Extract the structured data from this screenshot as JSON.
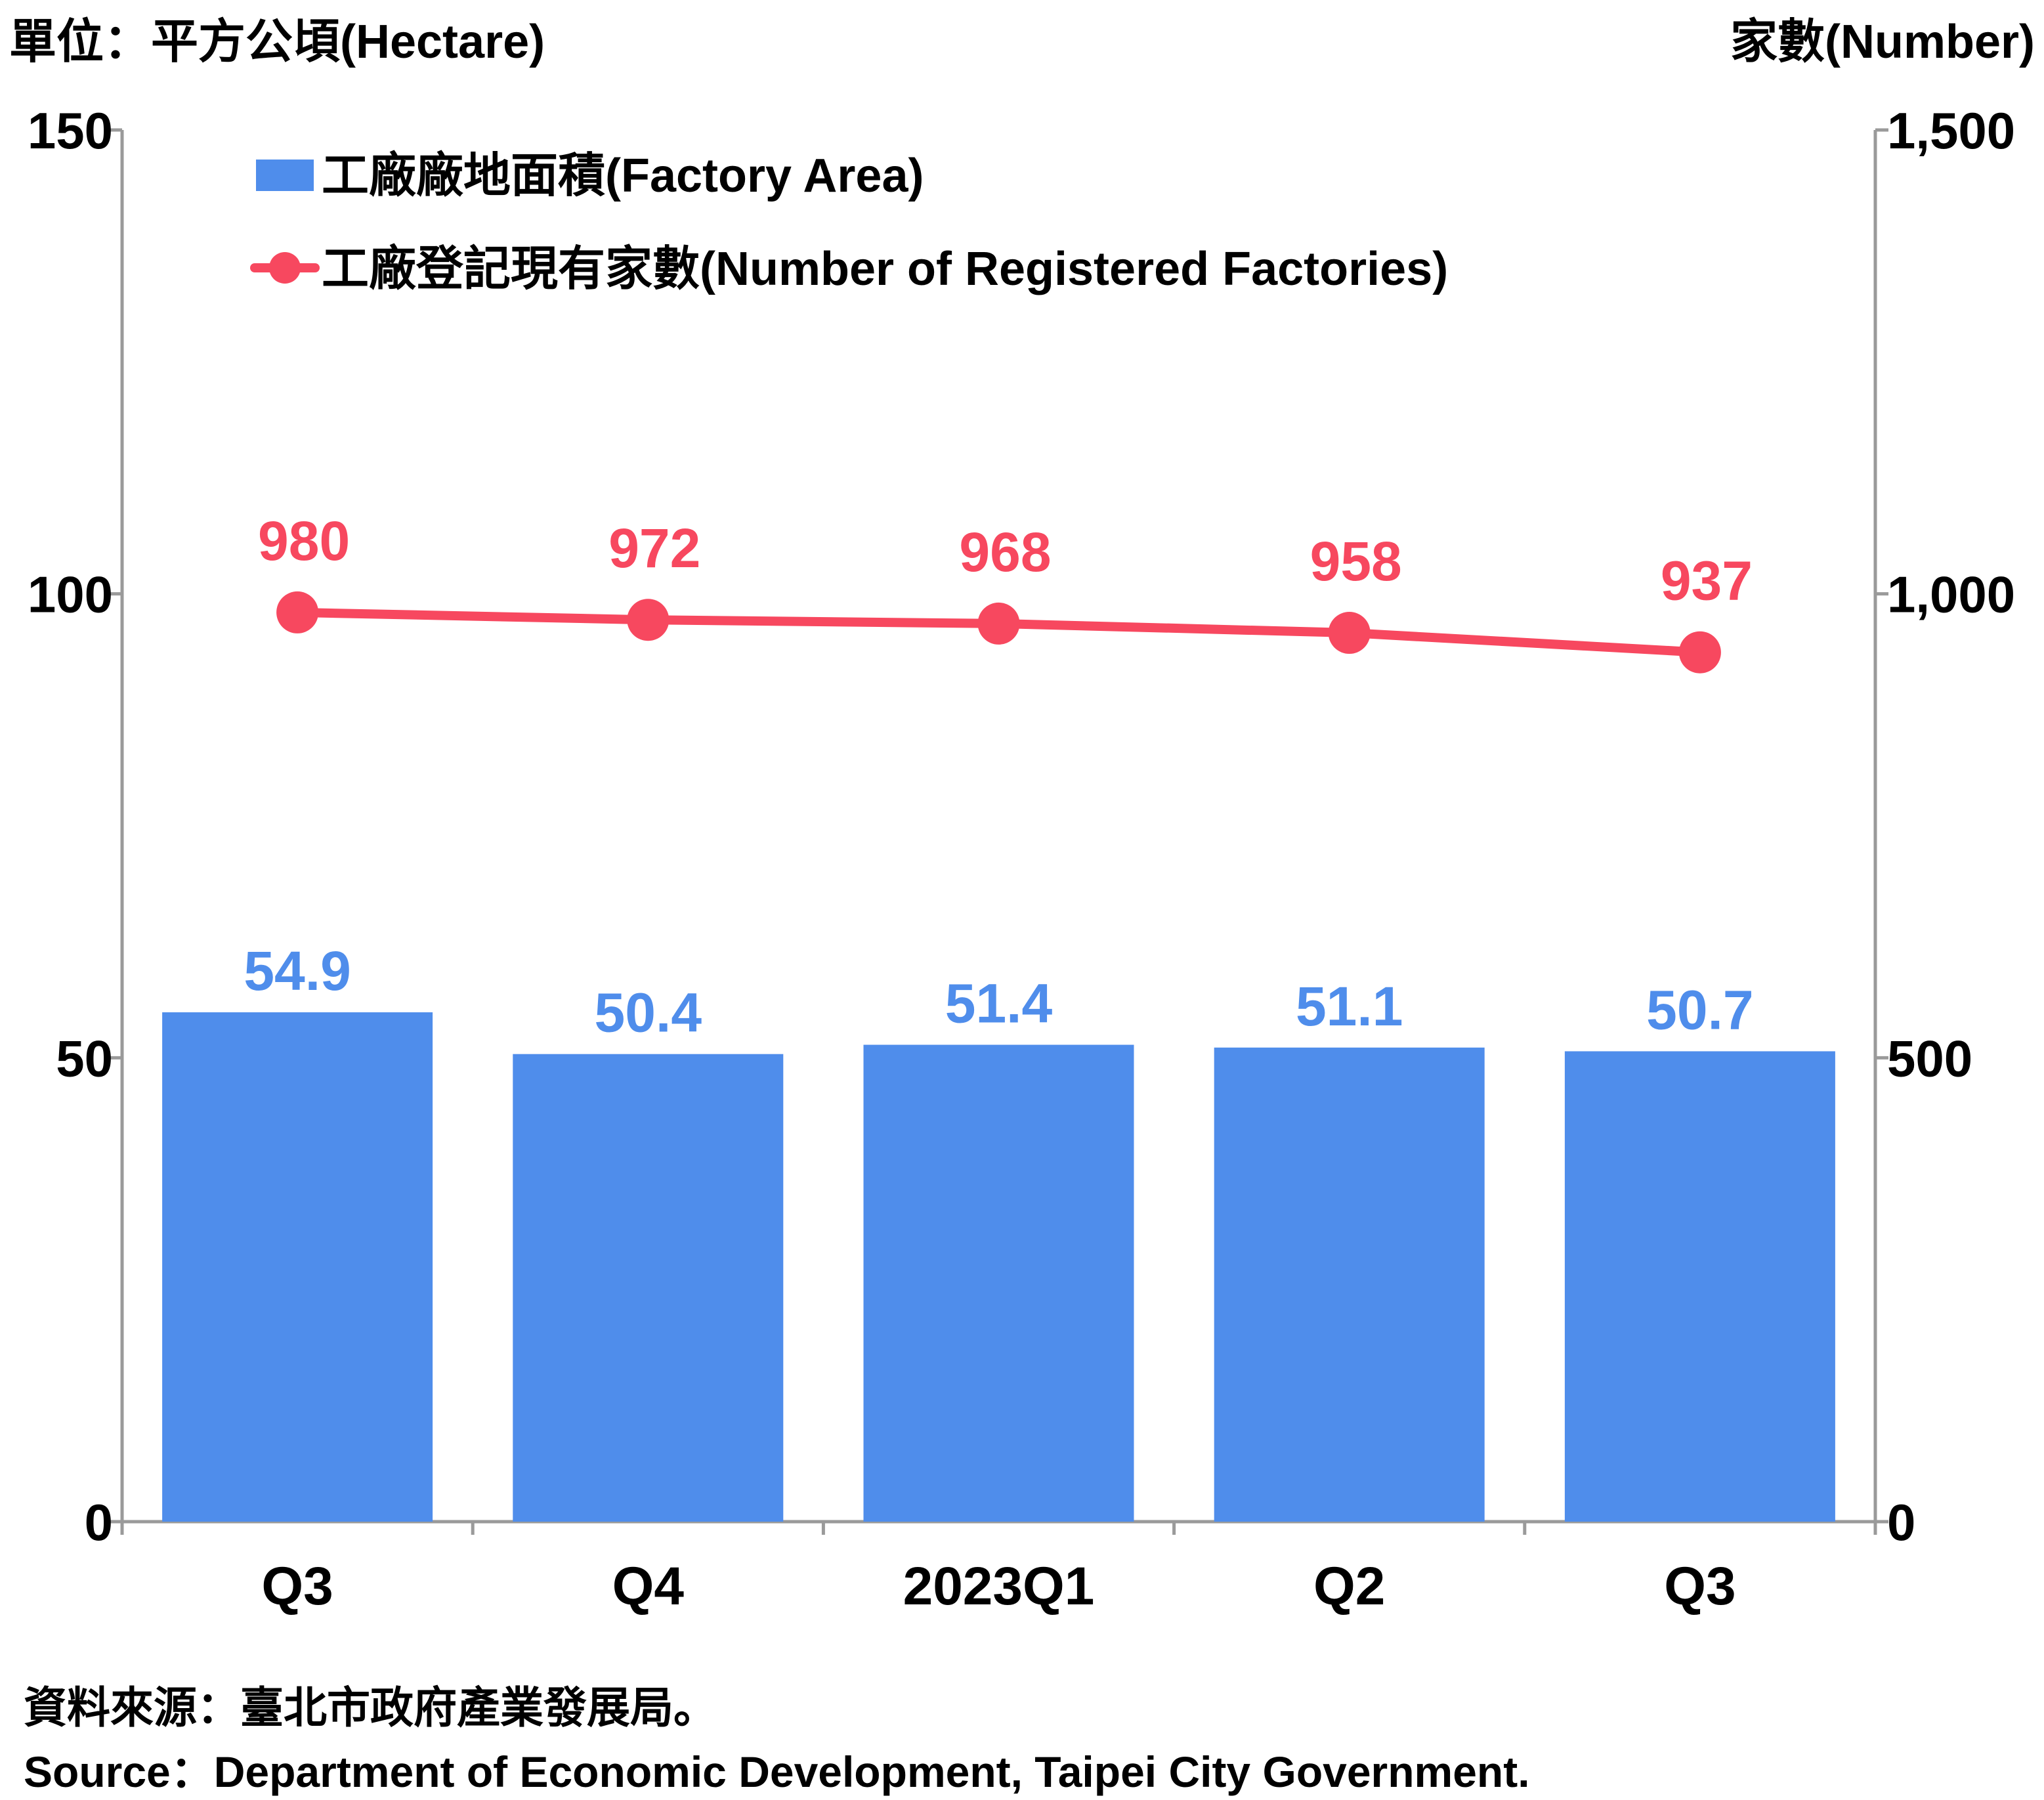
{
  "chart_data": {
    "type": "bar",
    "categories": [
      "Q3",
      "Q4",
      "2023Q1",
      "Q2",
      "Q3"
    ],
    "series": [
      {
        "name": "工廠廠地面積(Factory Area)",
        "type": "bar",
        "axis": "left",
        "values": [
          54.9,
          50.4,
          51.4,
          51.1,
          50.7
        ],
        "labels": [
          "54.9",
          "50.4",
          "51.4",
          "51.1",
          "50.7"
        ]
      },
      {
        "name": "工廠登記現有家數(Number of Registered Factories)",
        "type": "line",
        "axis": "right",
        "values": [
          980,
          972,
          968,
          958,
          937
        ],
        "labels": [
          "980",
          "972",
          "968",
          "958",
          "937"
        ]
      }
    ],
    "left_axis": {
      "title": "單位：平方公頃(Hectare)",
      "range": [
        0,
        150
      ],
      "ticks": [
        "0",
        "50",
        "100",
        "150"
      ],
      "tick_values": [
        0,
        50,
        100,
        150
      ]
    },
    "right_axis": {
      "title": "家數(Number)",
      "range": [
        0,
        1500
      ],
      "ticks": [
        "0",
        "500",
        "1,000",
        "1,500"
      ],
      "tick_values": [
        0,
        500,
        1000,
        1500
      ]
    },
    "legend_position": "top-left",
    "grid": false,
    "colors": {
      "bar": "#4f8deb",
      "bar_label": "#4f8deb",
      "line": "#f7485f",
      "line_label": "#f7485f",
      "axis": "#9a9a9a"
    }
  },
  "source": {
    "zh": "資料來源：臺北市政府產業發展局。",
    "en": "Source：Department of Economic Development, Taipei City Government."
  }
}
